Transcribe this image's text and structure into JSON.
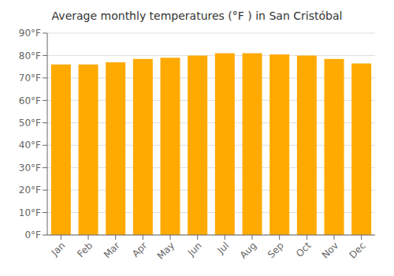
{
  "chart_data": {
    "type": "bar",
    "title": "Average monthly temperatures (°F ) in San Cristóbal",
    "categories": [
      "Jan",
      "Feb",
      "Mar",
      "Apr",
      "May",
      "Jun",
      "Jul",
      "Aug",
      "Sep",
      "Oct",
      "Nov",
      "Dec"
    ],
    "values": [
      76.0,
      76.0,
      77.0,
      78.5,
      79.0,
      80.0,
      81.0,
      81.0,
      80.5,
      80.0,
      78.5,
      76.5
    ],
    "color": "#FFAA00",
    "ylim": [
      0,
      90
    ],
    "yticks": [
      {
        "value": 0,
        "label": "0°F"
      },
      {
        "value": 10,
        "label": "10°F"
      },
      {
        "value": 20,
        "label": "20°F"
      },
      {
        "value": 30,
        "label": "30°F"
      },
      {
        "value": 40,
        "label": "40°F"
      },
      {
        "value": 50,
        "label": "50°F"
      },
      {
        "value": 60,
        "label": "60°F"
      },
      {
        "value": 70,
        "label": "70°F"
      },
      {
        "value": 80,
        "label": "80°F"
      },
      {
        "value": 90,
        "label": "90°F"
      }
    ],
    "grid": true
  }
}
